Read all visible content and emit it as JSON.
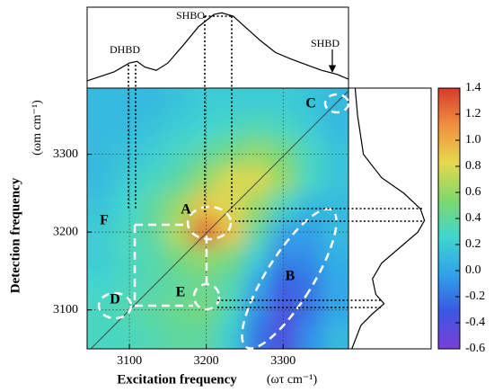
{
  "chart_data": [
    {
      "type": "heatmap",
      "x_label": "Excitation frequency",
      "x_unit": "(ωτ cm⁻¹)",
      "y_label": "Detection frequency",
      "y_unit": "(ωm cm⁻¹)",
      "xlim": [
        3045,
        3385
      ],
      "ylim": [
        3050,
        3385
      ],
      "xticks": [
        3100,
        3200,
        3300
      ],
      "yticks": [
        3100,
        3200,
        3300
      ],
      "grid": true,
      "x": [
        3062,
        3096,
        3130,
        3164,
        3198,
        3232,
        3266,
        3300,
        3334,
        3368
      ],
      "y": [
        3067,
        3100,
        3134,
        3167,
        3201,
        3234,
        3268,
        3301,
        3335,
        3368
      ],
      "z": [
        [
          0.3,
          0.3,
          0.35,
          0.4,
          0.4,
          0.2,
          -0.2,
          -0.4,
          -0.1,
          0.1
        ],
        [
          0.3,
          0.35,
          0.4,
          0.45,
          0.5,
          0.3,
          -0.1,
          -0.4,
          -0.2,
          0.0
        ],
        [
          0.25,
          0.3,
          0.35,
          0.4,
          0.45,
          0.35,
          0.0,
          -0.3,
          -0.2,
          0.0
        ],
        [
          0.2,
          0.3,
          0.35,
          0.5,
          0.6,
          0.5,
          0.2,
          -0.15,
          -0.1,
          0.05
        ],
        [
          0.2,
          0.3,
          0.4,
          0.7,
          1.3,
          0.9,
          0.4,
          0.0,
          -0.05,
          0.1
        ],
        [
          0.15,
          0.25,
          0.4,
          0.6,
          0.9,
          0.8,
          0.6,
          0.3,
          0.1,
          0.1
        ],
        [
          0.1,
          0.2,
          0.3,
          0.4,
          0.6,
          0.8,
          0.8,
          0.6,
          0.3,
          0.15
        ],
        [
          0.1,
          0.15,
          0.2,
          0.3,
          0.4,
          0.5,
          0.6,
          0.5,
          0.3,
          0.15
        ],
        [
          0.1,
          0.1,
          0.15,
          0.2,
          0.25,
          0.3,
          0.35,
          0.3,
          0.2,
          0.1
        ],
        [
          0.1,
          0.1,
          0.1,
          0.15,
          0.2,
          0.2,
          0.2,
          0.2,
          0.15,
          0.1
        ]
      ],
      "colormap": [
        "#7a3fd6",
        "#3b57e2",
        "#2fa2ea",
        "#3fd6cf",
        "#7fd86c",
        "#e6d84c",
        "#f0903e",
        "#d83a2c"
      ],
      "colorbar_lim": [
        -0.6,
        1.4
      ],
      "colorbar_ticks": [
        1.4,
        1.2,
        {
          "value": 1,
          "label": "1.0"
        },
        0.8,
        0.6,
        0.4,
        0.2,
        {
          "value": 0,
          "label": "0.0"
        },
        -0.2,
        -0.4,
        -0.6
      ],
      "annotations": [
        "A",
        "B",
        "C",
        "D",
        "E",
        "F",
        "DHBD",
        "SHBO",
        "SHBD"
      ]
    },
    {
      "type": "line",
      "color": "#000",
      "x": [
        3045,
        3080,
        3100,
        3110,
        3120,
        3135,
        3150,
        3170,
        3190,
        3210,
        3220,
        3235,
        3250,
        3270,
        3290,
        3310,
        3330,
        3350,
        3370,
        3385
      ],
      "values": [
        0.09,
        0.2,
        0.31,
        0.33,
        0.26,
        0.22,
        0.31,
        0.53,
        0.76,
        0.91,
        0.93,
        0.89,
        0.76,
        0.59,
        0.44,
        0.36,
        0.29,
        0.22,
        0.17,
        0.11
      ]
    },
    {
      "type": "line",
      "orientation": "vertical",
      "color": "#000",
      "y": [
        3050,
        3080,
        3095,
        3108,
        3120,
        3140,
        3160,
        3180,
        3200,
        3215,
        3230,
        3250,
        3270,
        3300,
        3350,
        3385
      ],
      "values": [
        0.04,
        0.15,
        0.29,
        0.43,
        0.33,
        0.29,
        0.4,
        0.62,
        0.84,
        0.92,
        0.87,
        0.67,
        0.4,
        0.18,
        0.11,
        0.08
      ]
    }
  ]
}
